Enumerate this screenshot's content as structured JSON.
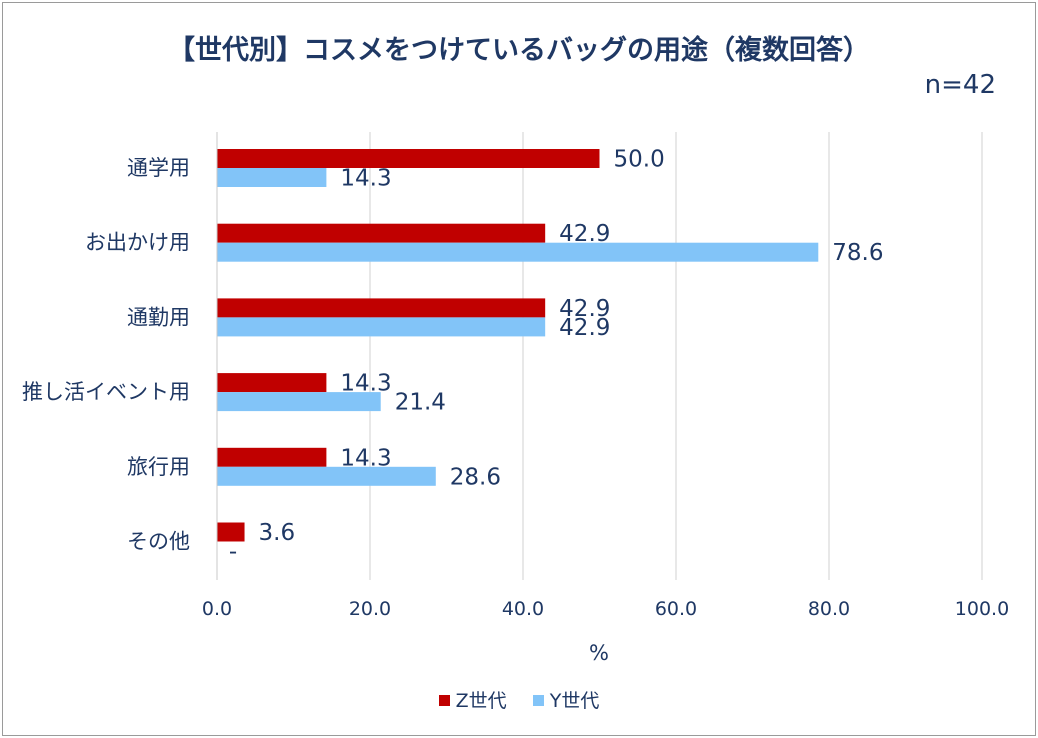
{
  "title": "【世代別】コスメをつけているバッグの用途（複数回答）",
  "sample_size": "n=42",
  "colors": {
    "z": "#c00000",
    "y": "#82c4f8",
    "grid": "#d9d9d9",
    "text": "#1f3864"
  },
  "legend": {
    "z_label": "Z世代",
    "y_label": "Y世代"
  },
  "chart_data": {
    "type": "bar",
    "orientation": "horizontal",
    "title": "【世代別】コスメをつけているバッグの用途（複数回答）",
    "xlabel": "%",
    "ylabel": "",
    "xlim": [
      0,
      100
    ],
    "x_ticks": [
      "0.0",
      "20.0",
      "40.0",
      "60.0",
      "80.0",
      "100.0"
    ],
    "x_tick_values": [
      0,
      20,
      40,
      60,
      80,
      100
    ],
    "grid": true,
    "legend_position": "bottom",
    "categories": [
      "通学用",
      "お出かけ用",
      "通勤用",
      "推し活イベント用",
      "旅行用",
      "その他"
    ],
    "series": [
      {
        "name": "Z世代",
        "values": [
          50.0,
          42.9,
          42.9,
          14.3,
          14.3,
          3.6
        ],
        "labels": [
          "50.0",
          "42.9",
          "42.9",
          "14.3",
          "14.3",
          "3.6"
        ]
      },
      {
        "name": "Y世代",
        "values": [
          14.3,
          78.6,
          42.9,
          21.4,
          28.6,
          0
        ],
        "labels": [
          "14.3",
          "78.6",
          "42.9",
          "21.4",
          "28.6",
          "-"
        ]
      }
    ]
  }
}
